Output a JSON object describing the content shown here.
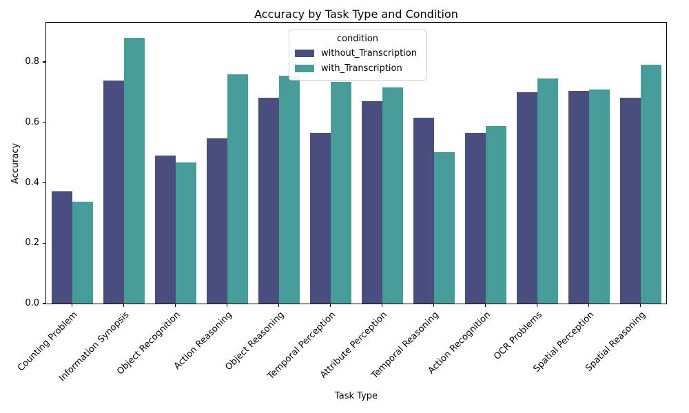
{
  "chart_data": {
    "type": "bar",
    "title": "Accuracy by Task Type and Condition",
    "xlabel": "Task Type",
    "ylabel": "Accuracy",
    "ylim": [
      0,
      0.93
    ],
    "yticks": [
      0.0,
      0.2,
      0.4,
      0.6,
      0.8
    ],
    "grid": false,
    "legend": {
      "title": "condition",
      "position": "upper center"
    },
    "categories": [
      "Counting Problem",
      "Information Synopsis",
      "Object Recognition",
      "Action Reasoning",
      "Object Reasoning",
      "Temporal Perception",
      "Attribute Perception",
      "Temporal Reasoning",
      "Action Recognition",
      "OCR Problems",
      "Spatial Perception",
      "Spatial Reasoning"
    ],
    "series": [
      {
        "name": "without_Transcription",
        "color": "#4a4e7e",
        "values": [
          0.372,
          0.739,
          0.491,
          0.546,
          0.682,
          0.565,
          0.67,
          0.616,
          0.565,
          0.699,
          0.704,
          0.681
        ]
      },
      {
        "name": "with_Transcription",
        "color": "#469d98",
        "values": [
          0.338,
          0.879,
          0.468,
          0.758,
          0.755,
          0.734,
          0.715,
          0.501,
          0.589,
          0.745,
          0.71,
          0.79
        ]
      }
    ]
  }
}
